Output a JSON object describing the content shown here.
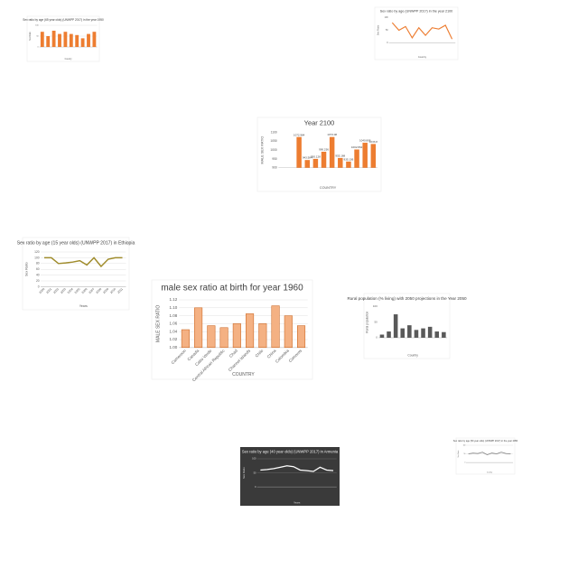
{
  "chart_data": [
    {
      "type": "bar",
      "title": "Sex ratio by age (65 year olds) (UNWPP 2017) in the year 1950",
      "categories": [
        null,
        null,
        null,
        null,
        null,
        null,
        null,
        null,
        null,
        null
      ],
      "values": [
        70,
        50,
        75,
        60,
        70,
        60,
        55,
        40,
        60,
        70
      ],
      "color": "#ed7d31",
      "ylim": [
        0,
        100
      ],
      "yticks": [
        0,
        50,
        100
      ],
      "x_label": "Country",
      "y_label": "Sex Ratio",
      "grid": true
    },
    {
      "type": "line",
      "title": "Sex ratio by age (UNWPP 2017) in the year 2100",
      "categories": [
        null,
        null,
        null,
        null,
        null,
        null,
        null,
        null,
        null,
        null
      ],
      "values": [
        80,
        50,
        65,
        20,
        60,
        30,
        60,
        55,
        70,
        15
      ],
      "color": "#ed7d31",
      "ylim": [
        0,
        100
      ],
      "yticks": [
        0,
        50,
        100
      ],
      "x_label": "Country",
      "y_label": "Sex Ratio",
      "grid": false
    },
    {
      "type": "bar",
      "title": "Year 2100",
      "categories": [
        null,
        null,
        null,
        null,
        null,
        null,
        null,
        null,
        null,
        null,
        null,
        null
      ],
      "values": [
        null,
        null,
        1072.984,
        943.584,
        950.128,
        990.236,
        1073.08,
        955.168,
        935.136,
        1002.862,
        1040.808,
        1033.8
      ],
      "value_labels": [
        null,
        null,
        "1072.984",
        "943.584",
        "950.128",
        "990.236",
        "1073.08",
        "955.168",
        "935.136",
        "1002.862",
        "1040.808",
        "1033.8"
      ],
      "color": "#ed7d31",
      "ylim": [
        900,
        1100
      ],
      "yticks": [
        900,
        950,
        1000,
        1050,
        1100
      ],
      "x_label": "COUNTRY",
      "y_label": "MALE SEX RATIO",
      "grid": false
    },
    {
      "type": "line",
      "title": "Sex ratio by age (15 year olds) (UNWPP 2017) in Ethiopia",
      "categories": [
        "2000",
        "2001",
        "2002",
        "2003",
        "2004",
        "2005",
        "2006",
        "2007",
        "2008",
        "2009",
        "2010",
        "2011"
      ],
      "values": [
        100,
        100,
        80,
        82,
        85,
        90,
        75,
        100,
        70,
        95,
        100,
        100
      ],
      "color": "#a08c2c",
      "ylim": [
        0,
        120
      ],
      "yticks": [
        0,
        20,
        40,
        60,
        80,
        100,
        120
      ],
      "x_label": "Years",
      "y_label": "Sex Ratio",
      "grid": true
    },
    {
      "type": "bar",
      "title": "male sex ratio at birth for year 1960",
      "categories": [
        "Cameroon",
        "Canada",
        "Cabo Verde",
        "Central African Republic",
        "Chad",
        "Channel Islands",
        "Chile",
        "China",
        "Colombia",
        "Comoros"
      ],
      "values": [
        1.045,
        1.1,
        1.055,
        1.05,
        1.06,
        1.085,
        1.06,
        1.105,
        1.08,
        1.055
      ],
      "color": "#f4b183",
      "ylim": [
        1.0,
        1.12
      ],
      "yticks": [
        {
          "value": 1.0,
          "label": "1.00"
        },
        {
          "value": 1.02,
          "label": "1.02"
        },
        {
          "value": 1.04,
          "label": "1.04"
        },
        {
          "value": 1.06,
          "label": "1.06"
        },
        {
          "value": 1.08,
          "label": "1.08"
        },
        {
          "value": 1.1,
          "label": "1.10"
        },
        {
          "value": 1.12,
          "label": "1.12"
        }
      ],
      "x_label": "COUNTRY",
      "y_label": "MALE SEX RATIO",
      "grid": true
    },
    {
      "type": "bar",
      "title": "Rural population (% living) with 2050 projections in the Year 2050",
      "categories": [
        null,
        null,
        null,
        null,
        null,
        null,
        null,
        null,
        null,
        null
      ],
      "values": [
        10,
        20,
        75,
        30,
        40,
        25,
        30,
        35,
        20,
        18
      ],
      "color": "#595959",
      "ylim": [
        0,
        100
      ],
      "yticks": [
        0,
        50,
        100
      ],
      "x_label": "Country",
      "y_label": "Rural population",
      "grid": false
    },
    {
      "type": "line",
      "title": "Sex ratio by age (40 year olds) (UNWPP 2017) in Armenia",
      "categories": [
        null,
        null,
        null,
        null,
        null,
        null,
        null,
        null,
        null,
        null,
        null,
        null
      ],
      "values": [
        60,
        62,
        65,
        70,
        75,
        72,
        60,
        58,
        55,
        70,
        60,
        58
      ],
      "color": "#ffffff",
      "background": "#3a3a3a",
      "ylim": [
        0,
        100
      ],
      "yticks": [
        0,
        50,
        100
      ],
      "x_label": "Years",
      "y_label": "Sex Ratio",
      "grid": true
    },
    {
      "type": "line",
      "title": "Sex ratio by age (50 year olds) (UNWPP 2017) in the year 2050",
      "categories": [
        null,
        null,
        null,
        null,
        null,
        null,
        null,
        null,
        null,
        null
      ],
      "values": [
        50,
        55,
        52,
        60,
        45,
        55,
        50,
        60,
        52,
        50
      ],
      "color": "#8c8c8c",
      "ylim": [
        0,
        100
      ],
      "yticks": [
        0,
        50,
        100
      ],
      "x_label": "Country",
      "y_label": "Sex Ratio",
      "grid": true
    }
  ]
}
